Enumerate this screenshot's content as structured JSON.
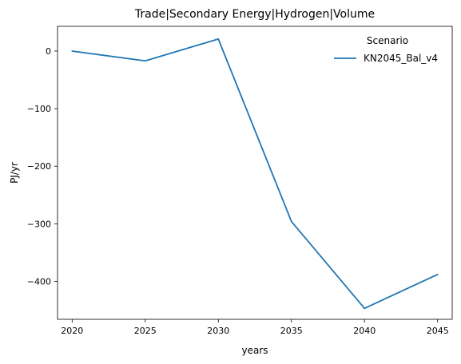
{
  "chart_data": {
    "type": "line",
    "title": "Trade|Secondary Energy|Hydrogen|Volume",
    "xlabel": "years",
    "ylabel": "PJ/yr",
    "x": [
      2020,
      2025,
      2030,
      2035,
      2040,
      2045
    ],
    "x_ticks": [
      2020,
      2025,
      2030,
      2035,
      2040,
      2045
    ],
    "y_ticks": [
      0,
      -100,
      -200,
      -300,
      -400
    ],
    "y_tick_labels": [
      "0",
      "−100",
      "−200",
      "−300",
      "−400"
    ],
    "xlim": [
      2019,
      2046
    ],
    "ylim": [
      -466,
      43
    ],
    "grid": false,
    "legend": {
      "title": "Scenario",
      "placement": "top-right"
    },
    "series": [
      {
        "name": "KN2045_Bal_v4",
        "color": "#1f77b4",
        "values": [
          0,
          -17,
          21,
          -296,
          -447,
          -388
        ]
      }
    ]
  }
}
